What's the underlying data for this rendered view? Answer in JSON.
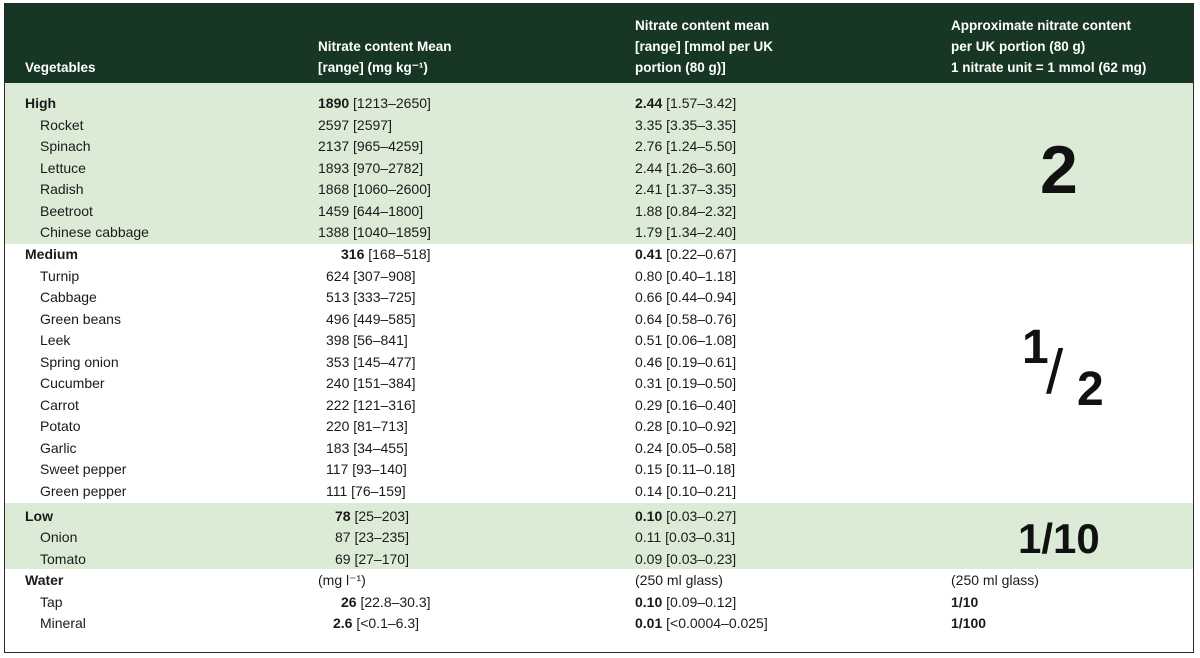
{
  "headers": {
    "vegetables": "Vegetables",
    "mg_line1": "Nitrate content Mean",
    "mg_line2": "[range] (mg kg⁻¹)",
    "mmol_line1": "Nitrate content mean",
    "mmol_line2": "[range] [mmol per UK",
    "mmol_line3": "portion (80 g)]",
    "units_line1": "Approximate nitrate content",
    "units_line2": "per UK portion (80 g)",
    "units_line3": "1 nitrate unit = 1 mmol (62 mg)"
  },
  "groups": {
    "high": {
      "label": "High",
      "mg_mean": "1890",
      "mg_range": "[1213–2650]",
      "mmol_mean": "2.44",
      "mmol_range": "[1.57–3.42]",
      "units": "2",
      "items": [
        {
          "name": "Rocket",
          "mg": "2597 [2597]",
          "mmol": "3.35 [3.35–3.35]"
        },
        {
          "name": "Spinach",
          "mg": "2137 [965–4259]",
          "mmol": "2.76 [1.24–5.50]"
        },
        {
          "name": "Lettuce",
          "mg": "1893 [970–2782]",
          "mmol": "2.44 [1.26–3.60]"
        },
        {
          "name": "Radish",
          "mg": "1868 [1060–2600]",
          "mmol": "2.41 [1.37–3.35]"
        },
        {
          "name": "Beetroot",
          "mg": "1459 [644–1800]",
          "mmol": "1.88 [0.84–2.32]"
        },
        {
          "name": "Chinese cabbage",
          "mg": "1388 [1040–1859]",
          "mmol": "1.79 [1.34–2.40]"
        }
      ]
    },
    "medium": {
      "label": "Medium",
      "mg_mean": "316",
      "mg_range": "[168–518]",
      "mmol_mean": "0.41",
      "mmol_range": "[0.22–0.67]",
      "units_num": "1",
      "units_slash": "/",
      "units_den": "2",
      "items": [
        {
          "name": "Turnip",
          "mg": "624 [307–908]",
          "mmol": "0.80 [0.40–1.18]"
        },
        {
          "name": "Cabbage",
          "mg": "513 [333–725]",
          "mmol": "0.66 [0.44–0.94]"
        },
        {
          "name": "Green beans",
          "mg": "496 [449–585]",
          "mmol": "0.64 [0.58–0.76]"
        },
        {
          "name": "Leek",
          "mg": "398 [56–841]",
          "mmol": "0.51 [0.06–1.08]"
        },
        {
          "name": "Spring onion",
          "mg": "353 [145–477]",
          "mmol": "0.46 [0.19–0.61]"
        },
        {
          "name": "Cucumber",
          "mg": "240 [151–384]",
          "mmol": "0.31 [0.19–0.50]"
        },
        {
          "name": "Carrot",
          "mg": "222 [121–316]",
          "mmol": "0.29 [0.16–0.40]"
        },
        {
          "name": "Potato",
          "mg": "220 [81–713]",
          "mmol": "0.28 [0.10–0.92]"
        },
        {
          "name": "Garlic",
          "mg": "183 [34–455]",
          "mmol": "0.24 [0.05–0.58]"
        },
        {
          "name": "Sweet pepper",
          "mg": "117 [93–140]",
          "mmol": "0.15 [0.11–0.18]"
        },
        {
          "name": "Green pepper",
          "mg": "111 [76–159]",
          "mmol": "0.14 [0.10–0.21]"
        }
      ]
    },
    "low": {
      "label": "Low",
      "mg_mean": "78",
      "mg_range": "[25–203]",
      "mmol_mean": "0.10",
      "mmol_range": "[0.03–0.27]",
      "units": "1/10",
      "items": [
        {
          "name": "Onion",
          "mg": "87 [23–235]",
          "mmol": "0.11 [0.03–0.31]"
        },
        {
          "name": "Tomato",
          "mg": "69 [27–170]",
          "mmol": "0.09 [0.03–0.23]"
        }
      ]
    },
    "water": {
      "label": "Water",
      "mg_unit": "(mg l⁻¹)",
      "mmol_unit": "(250 ml glass)",
      "units_unit": "(250 ml glass)",
      "items": [
        {
          "name": "Tap",
          "mg_mean": "26",
          "mg_range": "[22.8–30.3]",
          "mmol_mean": "0.10",
          "mmol_range": "[0.09–0.12]",
          "units": "1/10"
        },
        {
          "name": "Mineral",
          "mg_mean": "2.6",
          "mg_range": "[<0.1–6.3]",
          "mmol_mean": "0.01",
          "mmol_range": "[<0.0004–0.025]",
          "units": "1/100"
        }
      ]
    }
  }
}
